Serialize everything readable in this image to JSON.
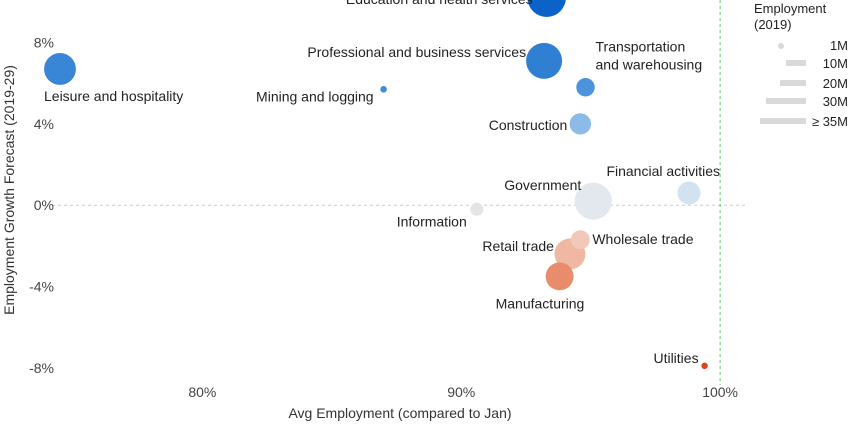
{
  "chart_data": {
    "type": "scatter",
    "title": "",
    "xlabel": "Avg Employment (compared to Jan)",
    "ylabel": "Employment Growth Forecast (2019-29)",
    "xlim": [
      74.5,
      101
    ],
    "ylim": [
      -8.5,
      9.7
    ],
    "x_ticks": [
      80,
      90,
      100
    ],
    "x_tick_labels": [
      "80%",
      "90%",
      "100%"
    ],
    "y_ticks": [
      8,
      4,
      0,
      -4,
      -8
    ],
    "y_tick_labels": [
      "8%",
      "4%",
      "0%",
      "-4%",
      "-8%"
    ],
    "reference_lines": {
      "y": 0,
      "x": 100
    },
    "size_variable": "Employment (2019), millions",
    "points": [
      {
        "label": "Education and health services",
        "x": 93.3,
        "y": 10.2,
        "size": 24.2,
        "color": "#0b63c9"
      },
      {
        "label": "Professional and business services",
        "x": 93.2,
        "y": 7.1,
        "size": 21.3,
        "color": "#2f7fd2"
      },
      {
        "label": "Leisure and hospitality",
        "x": 74.5,
        "y": 6.7,
        "size": 16.7,
        "color": "#3a86d6"
      },
      {
        "label": "Mining and logging",
        "x": 87.0,
        "y": 5.7,
        "size": 0.7,
        "color": "#3f8bd8"
      },
      {
        "label": "Transportation and warehousing",
        "x": 94.8,
        "y": 5.8,
        "size": 5.6,
        "color": "#4d93dc"
      },
      {
        "label": "Construction",
        "x": 94.6,
        "y": 4.0,
        "size": 7.5,
        "color": "#8bbbe6"
      },
      {
        "label": "Financial activities",
        "x": 98.8,
        "y": 0.6,
        "size": 8.7,
        "color": "#d3e2ef"
      },
      {
        "label": "Government",
        "x": 95.1,
        "y": 0.2,
        "size": 22.6,
        "color": "#e2e8ed"
      },
      {
        "label": "Information",
        "x": 90.6,
        "y": -0.2,
        "size": 2.8,
        "color": "#e4e4e6"
      },
      {
        "label": "Wholesale trade",
        "x": 94.6,
        "y": -1.7,
        "size": 5.9,
        "color": "#f2c9b9"
      },
      {
        "label": "Retail trade",
        "x": 94.2,
        "y": -2.4,
        "size": 15.7,
        "color": "#f0b8a2"
      },
      {
        "label": "Manufacturing",
        "x": 93.8,
        "y": -3.5,
        "size": 12.8,
        "color": "#e98c6c"
      },
      {
        "label": "Utilities",
        "x": 99.4,
        "y": -7.9,
        "size": 0.6,
        "color": "#e0401b"
      }
    ],
    "legend": {
      "title_lines": [
        "Employment",
        "(2019)"
      ],
      "placement": "right",
      "entries": [
        {
          "label": "1M",
          "shape": "dot"
        },
        {
          "label": "10M",
          "shape": "bar"
        },
        {
          "label": "20M",
          "shape": "bar"
        },
        {
          "label": "30M",
          "shape": "bar"
        },
        {
          "label": "≥ 35M",
          "shape": "bar"
        }
      ]
    }
  },
  "colors": {
    "zero_line": "#c8c8c8",
    "hundred_line": "#6cc26c",
    "legend_marks": "#d9d9d9"
  }
}
